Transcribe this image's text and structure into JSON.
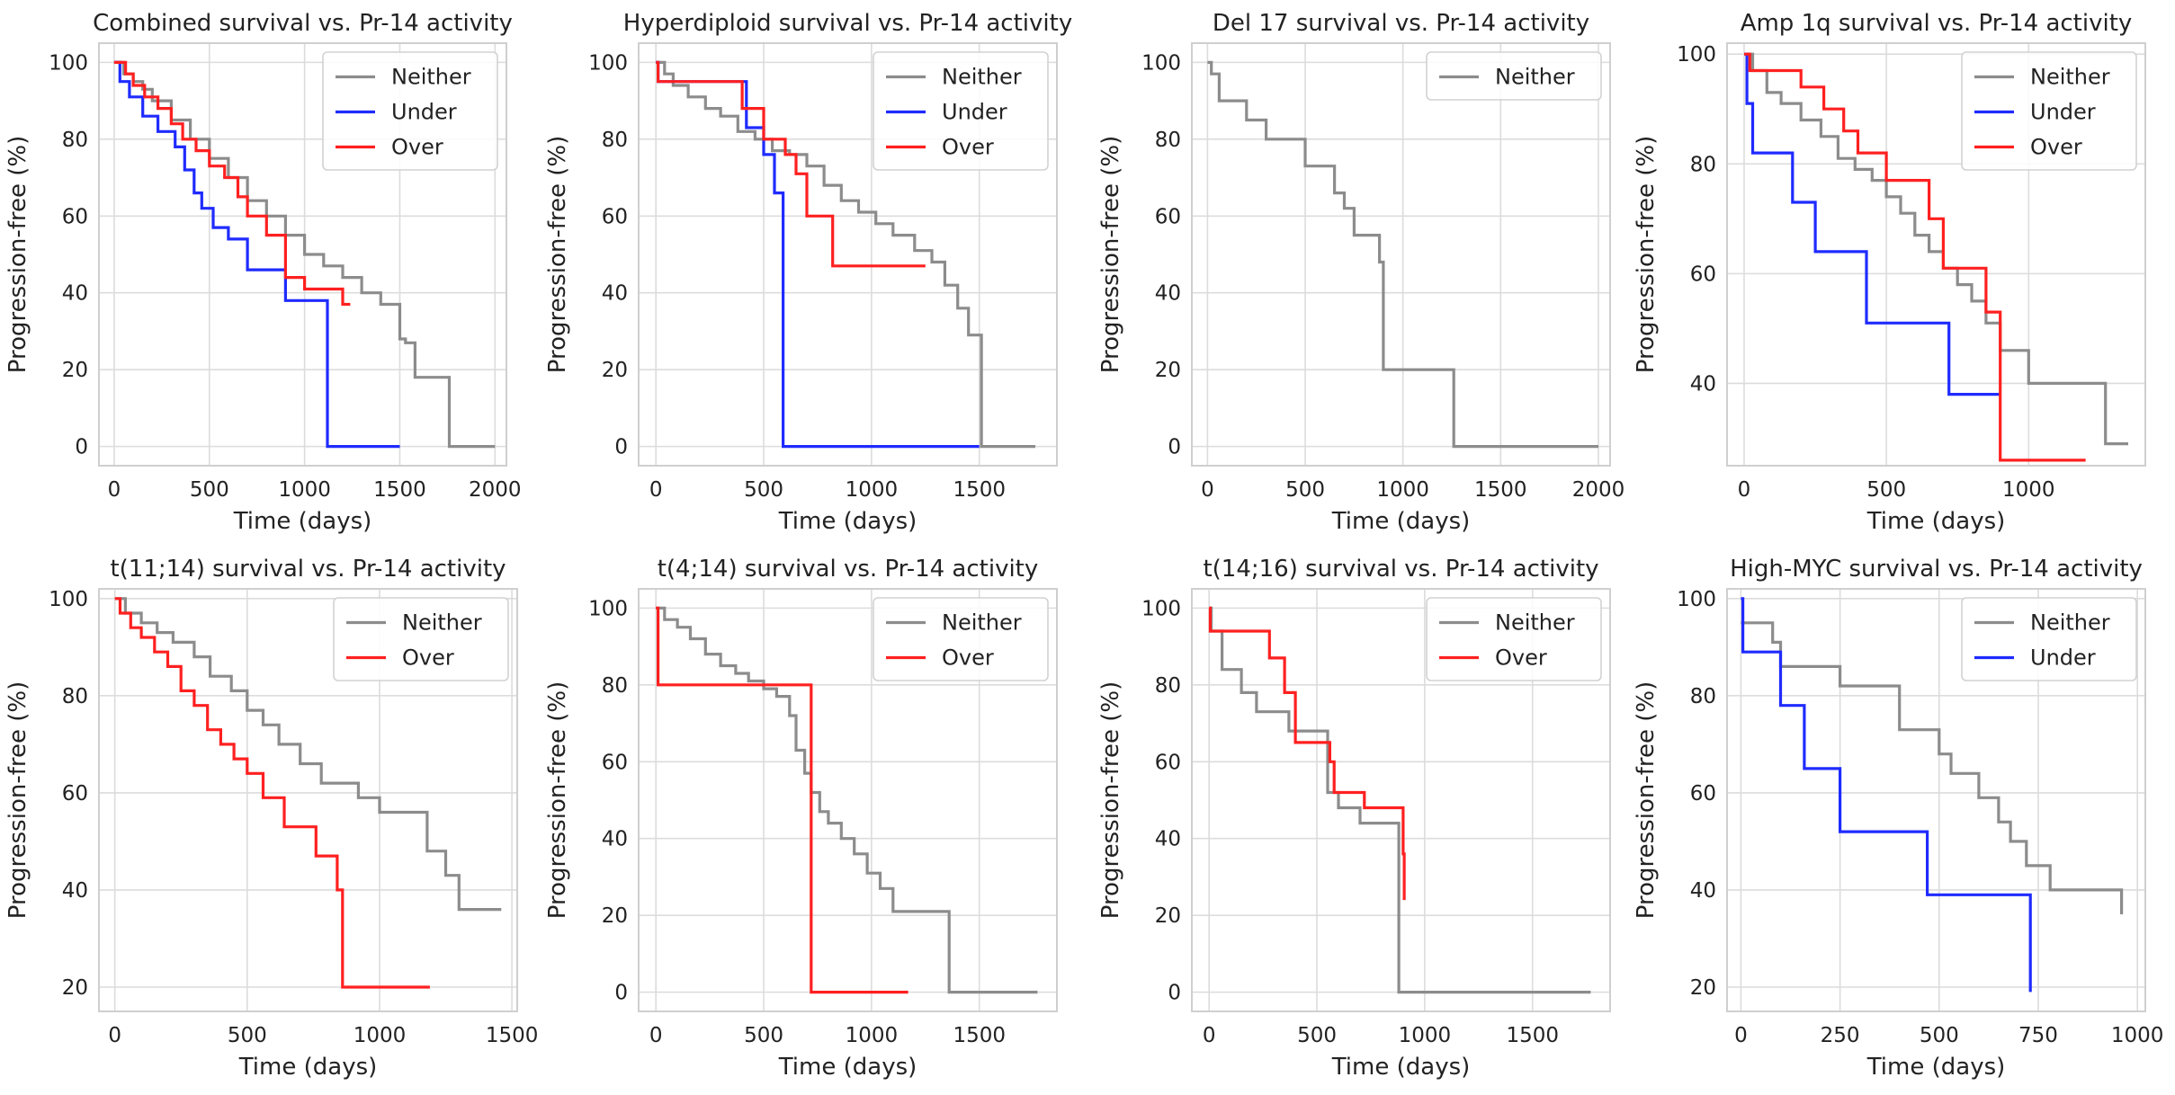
{
  "chart_data": [
    {
      "type": "line",
      "title": "Combined survival vs. Pr-14 activity",
      "xlabel": "Time (days)",
      "ylabel": "Progression-free (%)",
      "xlim": [
        -80,
        2060
      ],
      "ylim": [
        -5,
        105
      ],
      "xticks": [
        0,
        500,
        1000,
        1500,
        2000
      ],
      "yticks": [
        0,
        20,
        40,
        60,
        80,
        100
      ],
      "series": [
        {
          "name": "Neither",
          "color": "#8c8c8c",
          "x": [
            0,
            50,
            100,
            150,
            200,
            300,
            400,
            500,
            600,
            700,
            800,
            900,
            1000,
            1100,
            1200,
            1300,
            1400,
            1500,
            1530,
            1580,
            1750,
            1760,
            2000
          ],
          "y": [
            100,
            97,
            95,
            93,
            90,
            85,
            80,
            75,
            70,
            64,
            60,
            55,
            50,
            47,
            44,
            40,
            37,
            28,
            27,
            18,
            18,
            0,
            0
          ]
        },
        {
          "name": "Under",
          "color": "#1f2bff",
          "x": [
            0,
            30,
            80,
            150,
            230,
            320,
            370,
            420,
            460,
            520,
            600,
            700,
            900,
            1110,
            1120,
            1500
          ],
          "y": [
            100,
            95,
            91,
            86,
            82,
            78,
            72,
            66,
            62,
            57,
            54,
            46,
            38,
            38,
            0,
            0
          ]
        },
        {
          "name": "Over",
          "color": "#ff2020",
          "x": [
            0,
            60,
            100,
            160,
            230,
            300,
            360,
            430,
            500,
            580,
            650,
            700,
            800,
            900,
            1000,
            1100,
            1200,
            1240
          ],
          "y": [
            100,
            97,
            94,
            91,
            88,
            84,
            80,
            77,
            73,
            70,
            65,
            60,
            55,
            44,
            41,
            41,
            37,
            37
          ]
        }
      ]
    },
    {
      "type": "line",
      "title": "Hyperdiploid survival vs. Pr-14 activity",
      "xlabel": "Time (days)",
      "ylabel": "Progression-free (%)",
      "xlim": [
        -80,
        1860
      ],
      "ylim": [
        -5,
        105
      ],
      "xticks": [
        0,
        500,
        1000,
        1500
      ],
      "yticks": [
        0,
        20,
        40,
        60,
        80,
        100
      ],
      "series": [
        {
          "name": "Neither",
          "color": "#8c8c8c",
          "x": [
            0,
            40,
            80,
            150,
            230,
            300,
            380,
            460,
            540,
            620,
            700,
            780,
            860,
            940,
            1020,
            1100,
            1200,
            1280,
            1340,
            1400,
            1450,
            1500,
            1510,
            1760
          ],
          "y": [
            100,
            97,
            94,
            91,
            88,
            86,
            82,
            80,
            77,
            76,
            73,
            68,
            64,
            61,
            58,
            55,
            51,
            48,
            42,
            36,
            29,
            29,
            0,
            0
          ]
        },
        {
          "name": "Under",
          "color": "#1f2bff",
          "x": [
            0,
            10,
            320,
            420,
            500,
            550,
            580,
            590,
            1500
          ],
          "y": [
            100,
            95,
            95,
            83,
            76,
            66,
            66,
            0,
            0
          ]
        },
        {
          "name": "Over",
          "color": "#ff2020",
          "x": [
            0,
            10,
            350,
            400,
            500,
            600,
            650,
            700,
            800,
            820,
            1250
          ],
          "y": [
            100,
            95,
            95,
            88,
            80,
            76,
            71,
            60,
            60,
            47,
            47
          ]
        }
      ]
    },
    {
      "type": "line",
      "title": "Del 17 survival vs. Pr-14 activity",
      "xlabel": "Time (days)",
      "ylabel": "Progression-free (%)",
      "xlim": [
        -80,
        2060
      ],
      "ylim": [
        -5,
        105
      ],
      "xticks": [
        0,
        500,
        1000,
        1500,
        2000
      ],
      "yticks": [
        0,
        20,
        40,
        60,
        80,
        100
      ],
      "series": [
        {
          "name": "Neither",
          "color": "#8c8c8c",
          "x": [
            0,
            20,
            60,
            150,
            200,
            300,
            350,
            500,
            600,
            650,
            700,
            750,
            850,
            880,
            900,
            1250,
            1260,
            2000
          ],
          "y": [
            100,
            97,
            90,
            90,
            85,
            80,
            80,
            73,
            73,
            66,
            62,
            55,
            55,
            48,
            20,
            20,
            0,
            0
          ]
        }
      ]
    },
    {
      "type": "line",
      "title": "Amp 1q survival vs. Pr-14 activity",
      "xlabel": "Time (days)",
      "ylabel": "Progression-free (%)",
      "xlim": [
        -60,
        1410
      ],
      "ylim": [
        25,
        102
      ],
      "xticks": [
        0,
        500,
        1000
      ],
      "yticks": [
        40,
        60,
        80,
        100
      ],
      "series": [
        {
          "name": "Neither",
          "color": "#8c8c8c",
          "x": [
            0,
            30,
            80,
            130,
            200,
            270,
            330,
            390,
            450,
            500,
            550,
            600,
            650,
            700,
            750,
            800,
            850,
            900,
            1000,
            1100,
            1200,
            1250,
            1270,
            1350
          ],
          "y": [
            100,
            97,
            93,
            91,
            88,
            85,
            81,
            79,
            77,
            74,
            71,
            67,
            64,
            61,
            58,
            55,
            51,
            46,
            40,
            40,
            40,
            40,
            29,
            29
          ]
        },
        {
          "name": "Under",
          "color": "#1f2bff",
          "x": [
            0,
            10,
            30,
            170,
            250,
            420,
            430,
            710,
            720,
            900
          ],
          "y": [
            100,
            91,
            82,
            73,
            64,
            64,
            51,
            51,
            38,
            38
          ]
        },
        {
          "name": "Over",
          "color": "#ff2020",
          "x": [
            0,
            20,
            100,
            200,
            280,
            350,
            400,
            500,
            600,
            650,
            700,
            850,
            900,
            1000,
            1200
          ],
          "y": [
            100,
            97,
            97,
            94,
            90,
            86,
            82,
            77,
            77,
            70,
            61,
            53,
            26,
            26,
            26
          ]
        }
      ]
    },
    {
      "type": "line",
      "title": "t(11;14) survival vs. Pr-14 activity",
      "xlabel": "Time (days)",
      "ylabel": "Progression-free (%)",
      "xlim": [
        -60,
        1520
      ],
      "ylim": [
        15,
        102
      ],
      "xticks": [
        0,
        500,
        1000,
        1500
      ],
      "yticks": [
        20,
        40,
        60,
        80,
        100
      ],
      "series": [
        {
          "name": "Neither",
          "color": "#8c8c8c",
          "x": [
            0,
            40,
            100,
            160,
            220,
            300,
            360,
            440,
            500,
            560,
            620,
            700,
            780,
            920,
            1000,
            1100,
            1180,
            1250,
            1300,
            1460
          ],
          "y": [
            100,
            97,
            95,
            93,
            91,
            88,
            84,
            81,
            77,
            74,
            70,
            66,
            62,
            59,
            56,
            56,
            48,
            43,
            36,
            36
          ]
        },
        {
          "name": "Over",
          "color": "#ff2020",
          "x": [
            0,
            20,
            60,
            100,
            150,
            200,
            250,
            300,
            350,
            400,
            450,
            500,
            560,
            640,
            700,
            760,
            840,
            860,
            1190
          ],
          "y": [
            100,
            97,
            94,
            92,
            89,
            86,
            81,
            78,
            73,
            70,
            67,
            64,
            59,
            53,
            53,
            47,
            40,
            20,
            20
          ]
        }
      ]
    },
    {
      "type": "line",
      "title": "t(4;14) survival vs. Pr-14 activity",
      "xlabel": "Time (days)",
      "ylabel": "Progression-free (%)",
      "xlim": [
        -80,
        1860
      ],
      "ylim": [
        -5,
        105
      ],
      "xticks": [
        0,
        500,
        1000,
        1500
      ],
      "yticks": [
        0,
        20,
        40,
        60,
        80,
        100
      ],
      "series": [
        {
          "name": "Neither",
          "color": "#8c8c8c",
          "x": [
            0,
            40,
            100,
            160,
            230,
            300,
            370,
            430,
            500,
            560,
            620,
            650,
            690,
            720,
            760,
            800,
            860,
            920,
            980,
            1040,
            1100,
            1350,
            1360,
            1770
          ],
          "y": [
            100,
            97,
            95,
            92,
            88,
            85,
            83,
            81,
            79,
            77,
            72,
            63,
            57,
            52,
            47,
            44,
            40,
            36,
            31,
            27,
            21,
            21,
            0,
            0
          ]
        },
        {
          "name": "Over",
          "color": "#ff2020",
          "x": [
            0,
            10,
            710,
            720,
            1170
          ],
          "y": [
            100,
            80,
            80,
            0,
            0
          ]
        }
      ]
    },
    {
      "type": "line",
      "title": "t(14;16) survival vs. Pr-14 activity",
      "xlabel": "Time (days)",
      "ylabel": "Progression-free (%)",
      "xlim": [
        -80,
        1860
      ],
      "ylim": [
        -5,
        105
      ],
      "xticks": [
        0,
        500,
        1000,
        1500
      ],
      "yticks": [
        0,
        20,
        40,
        60,
        80,
        100
      ],
      "series": [
        {
          "name": "Neither",
          "color": "#8c8c8c",
          "x": [
            0,
            10,
            60,
            150,
            220,
            370,
            550,
            600,
            700,
            850,
            880,
            1770
          ],
          "y": [
            100,
            94,
            84,
            78,
            73,
            68,
            52,
            48,
            44,
            44,
            0,
            0
          ]
        },
        {
          "name": "Over",
          "color": "#ff2020",
          "x": [
            0,
            5,
            280,
            350,
            400,
            560,
            580,
            720,
            900,
            905
          ],
          "y": [
            100,
            94,
            87,
            78,
            65,
            60,
            52,
            48,
            36,
            24
          ]
        }
      ]
    },
    {
      "type": "line",
      "title": "High-MYC survival vs. Pr-14 activity",
      "xlabel": "Time (days)",
      "ylabel": "Progression-free (%)",
      "xlim": [
        -35,
        1020
      ],
      "ylim": [
        15,
        102
      ],
      "xticks": [
        0,
        250,
        500,
        750,
        1000
      ],
      "yticks": [
        20,
        40,
        60,
        80,
        100
      ],
      "series": [
        {
          "name": "Neither",
          "color": "#8c8c8c",
          "x": [
            0,
            80,
            100,
            250,
            400,
            500,
            530,
            600,
            650,
            680,
            720,
            780,
            960
          ],
          "y": [
            95,
            91,
            86,
            82,
            73,
            68,
            64,
            59,
            54,
            50,
            45,
            40,
            35
          ]
        },
        {
          "name": "Under",
          "color": "#1f2bff",
          "x": [
            0,
            5,
            100,
            160,
            250,
            470,
            730
          ],
          "y": [
            100,
            89,
            78,
            65,
            52,
            39,
            19
          ]
        }
      ]
    }
  ]
}
